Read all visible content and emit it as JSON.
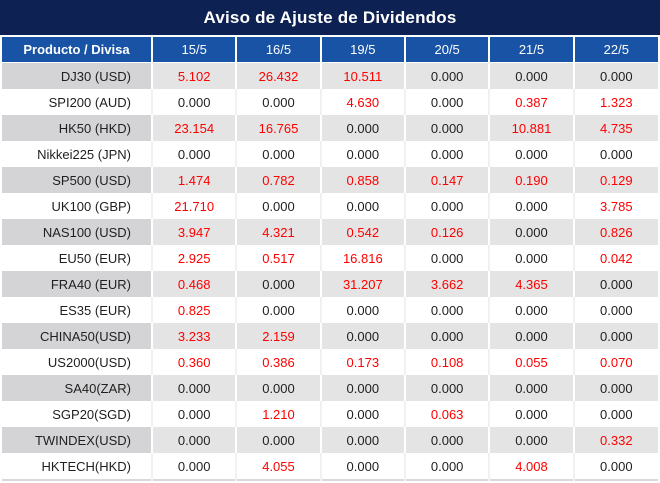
{
  "title": "Aviso de Ajuste de Dividendos",
  "table": {
    "columns": [
      "Producto / Divisa",
      "15/5",
      "16/5",
      "19/5",
      "20/5",
      "21/5",
      "22/5"
    ],
    "rows": [
      {
        "product": "DJ30 (USD)",
        "values": [
          "5.102",
          "26.432",
          "10.511",
          "0.000",
          "0.000",
          "0.000"
        ]
      },
      {
        "product": "SPI200 (AUD)",
        "values": [
          "0.000",
          "0.000",
          "4.630",
          "0.000",
          "0.387",
          "1.323"
        ]
      },
      {
        "product": "HK50 (HKD)",
        "values": [
          "23.154",
          "16.765",
          "0.000",
          "0.000",
          "10.881",
          "4.735"
        ]
      },
      {
        "product": "Nikkei225 (JPN)",
        "values": [
          "0.000",
          "0.000",
          "0.000",
          "0.000",
          "0.000",
          "0.000"
        ]
      },
      {
        "product": "SP500 (USD)",
        "values": [
          "1.474",
          "0.782",
          "0.858",
          "0.147",
          "0.190",
          "0.129"
        ]
      },
      {
        "product": "UK100 (GBP)",
        "values": [
          "21.710",
          "0.000",
          "0.000",
          "0.000",
          "0.000",
          "3.785"
        ]
      },
      {
        "product": "NAS100 (USD)",
        "values": [
          "3.947",
          "4.321",
          "0.542",
          "0.126",
          "0.000",
          "0.826"
        ]
      },
      {
        "product": "EU50 (EUR)",
        "values": [
          "2.925",
          "0.517",
          "16.816",
          "0.000",
          "0.000",
          "0.042"
        ]
      },
      {
        "product": "FRA40 (EUR)",
        "values": [
          "0.468",
          "0.000",
          "31.207",
          "3.662",
          "4.365",
          "0.000"
        ]
      },
      {
        "product": "ES35 (EUR)",
        "values": [
          "0.825",
          "0.000",
          "0.000",
          "0.000",
          "0.000",
          "0.000"
        ]
      },
      {
        "product": "CHINA50(USD)",
        "values": [
          "3.233",
          "2.159",
          "0.000",
          "0.000",
          "0.000",
          "0.000"
        ]
      },
      {
        "product": "US2000(USD)",
        "values": [
          "0.360",
          "0.386",
          "0.173",
          "0.108",
          "0.055",
          "0.070"
        ]
      },
      {
        "product": "SA40(ZAR)",
        "values": [
          "0.000",
          "0.000",
          "0.000",
          "0.000",
          "0.000",
          "0.000"
        ]
      },
      {
        "product": "SGP20(SGD)",
        "values": [
          "0.000",
          "1.210",
          "0.000",
          "0.063",
          "0.000",
          "0.000"
        ]
      },
      {
        "product": "TWINDEX(USD)",
        "values": [
          "0.000",
          "0.000",
          "0.000",
          "0.000",
          "0.000",
          "0.332"
        ]
      },
      {
        "product": "HKTECH(HKD)",
        "values": [
          "0.000",
          "4.055",
          "0.000",
          "0.000",
          "4.008",
          "0.000"
        ]
      }
    ]
  },
  "colors": {
    "title_bg": "#0d2152",
    "header_bg": "#1853a6",
    "label_alt_bg": "#d4d4d6",
    "cell_alt_bg": "#e4e4e4",
    "white_row_sep": "#f1f1f1",
    "bottom_border": "#d9d9d9",
    "value_red": "#ff0000",
    "text_dark": "#1f1f1f",
    "header_text": "#ffffff"
  }
}
